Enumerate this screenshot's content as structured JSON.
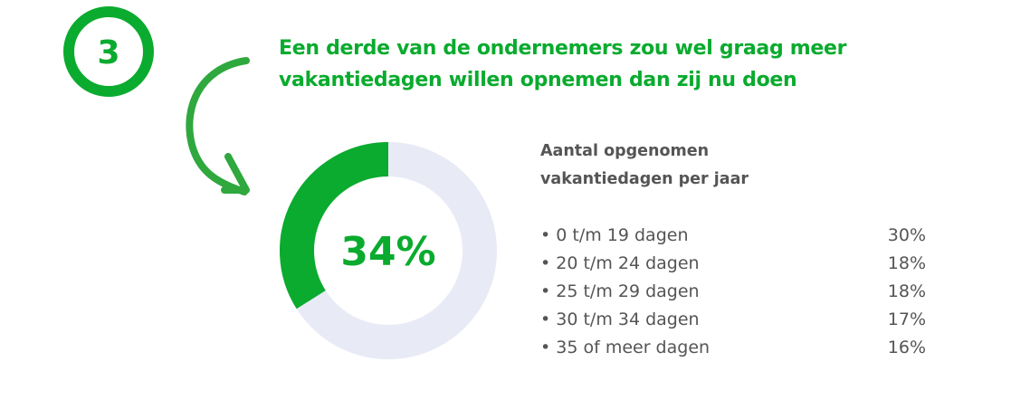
{
  "step_number": "3",
  "title": {
    "line1": "Een derde van de ondernemers zou wel graag meer",
    "line2": "vakantiedagen willen opnemen dan zij nu doen"
  },
  "colors": {
    "accent": "#0aab2e",
    "track": "#e8ebf5",
    "text": "#555555"
  },
  "chart_data": {
    "type": "pie",
    "style": "donut",
    "value_percent": 34,
    "center_label": "34%",
    "colors": [
      "#0aab2e",
      "#e8ebf5"
    ]
  },
  "legend": {
    "heading_line1": "Aantal opgenomen",
    "heading_line2": "vakantiedagen per jaar",
    "items": [
      {
        "label": "• 0 t/m 19 dagen",
        "value": "30%"
      },
      {
        "label": "• 20 t/m 24 dagen",
        "value": "18%"
      },
      {
        "label": "• 25 t/m 29 dagen",
        "value": "18%"
      },
      {
        "label": "• 30 t/m 34 dagen",
        "value": "17%"
      },
      {
        "label": "• 35 of meer dagen",
        "value": "16%"
      }
    ]
  }
}
